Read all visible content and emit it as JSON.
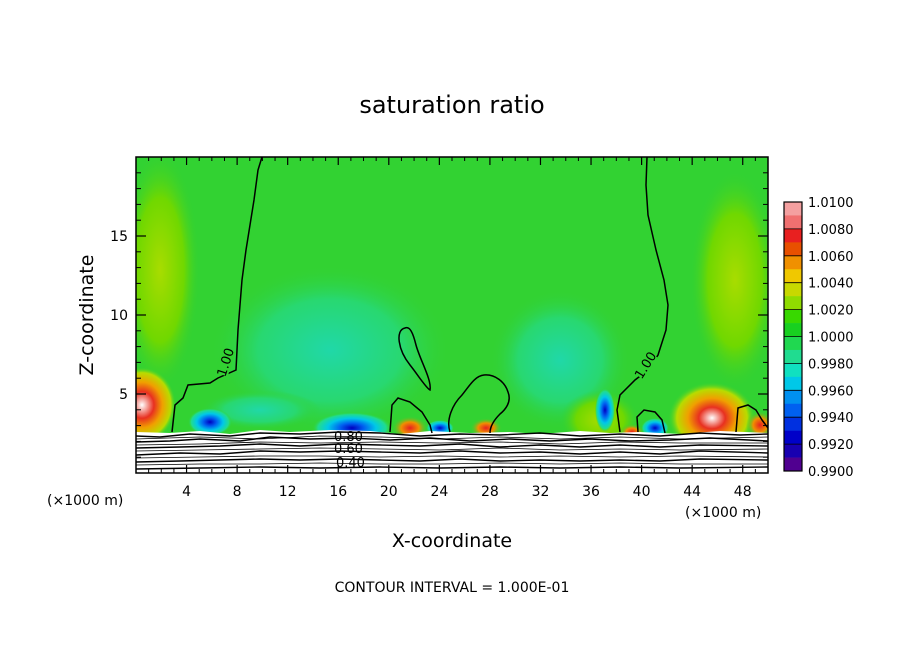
{
  "chart_data": {
    "type": "heatmap",
    "title": "saturation ratio",
    "xlabel": "X-coordinate",
    "ylabel": "Z-coordinate",
    "x_unit": "(×1000 m)",
    "x_unit_right": "(×1000 m)",
    "footer": "CONTOUR INTERVAL = 1.000E-01",
    "xlim": [
      0,
      50
    ],
    "ylim": [
      0,
      20
    ],
    "x_ticks": [
      4,
      8,
      12,
      16,
      20,
      24,
      28,
      32,
      36,
      40,
      44,
      48
    ],
    "y_ticks": [
      5,
      10,
      15
    ],
    "colorbar": {
      "labels": [
        "1.0100",
        "1.0080",
        "1.0060",
        "1.0040",
        "1.0020",
        "1.0000",
        "0.9980",
        "0.9960",
        "0.9940",
        "0.9920",
        "0.9900"
      ],
      "colors": [
        "#f4a0a0",
        "#f07070",
        "#e82020",
        "#e85000",
        "#f09000",
        "#f0c800",
        "#c8d800",
        "#90dc00",
        "#38d800",
        "#18d020",
        "#20d850",
        "#20dc90",
        "#10e0c0",
        "#00c8e8",
        "#0090f0",
        "#0060f0",
        "#0030e0",
        "#0000c8",
        "#1800b0",
        "#500090"
      ]
    },
    "contour_labels": [
      "1.00",
      "1.00",
      "0.80",
      "0.60",
      "0.40"
    ],
    "background_color": "#32d232"
  }
}
